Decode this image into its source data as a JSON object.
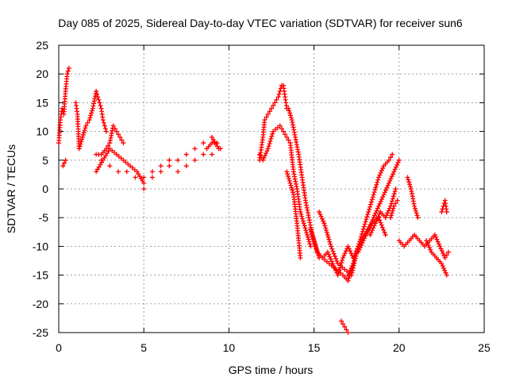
{
  "chart_data": {
    "type": "scatter",
    "title": "Day 085 of 2025, Sidereal Day-to-day VTEC variation (SDTVAR) for receiver sun6",
    "xlabel": "GPS time / hours",
    "ylabel": "SDTVAR / TECUs",
    "xlim": [
      0,
      25
    ],
    "ylim": [
      -25,
      25
    ],
    "xticks": [
      0,
      5,
      10,
      15,
      20,
      25
    ],
    "yticks": [
      25,
      20,
      15,
      10,
      5,
      0,
      -5,
      -10,
      -15,
      -20,
      -25
    ],
    "grid": true,
    "marker": "+",
    "series": [
      {
        "name": "SDTVAR",
        "color": "#ff0000",
        "x": [
          0.0,
          0.1,
          0.2,
          0.3,
          0.4,
          0.5,
          0.6,
          0.25,
          0.4,
          1.0,
          1.1,
          1.2,
          1.4,
          1.6,
          1.8,
          2.0,
          2.2,
          2.3,
          2.4,
          2.5,
          2.6,
          2.7,
          2.8,
          2.2,
          2.5,
          2.8,
          3.0,
          3.2,
          3.4,
          3.6,
          3.8,
          2.5,
          3.0,
          3.5,
          4.0,
          4.5,
          5.0,
          5.5,
          6.0,
          6.5,
          7.0,
          7.5,
          8.0,
          8.5,
          9.0,
          9.4,
          2.2,
          2.6,
          3.0,
          3.4,
          3.8,
          4.2,
          4.6,
          5.0,
          5.0,
          5.5,
          6.0,
          6.5,
          7.0,
          7.5,
          8.0,
          8.5,
          9.0,
          9.5,
          8.7,
          9.0,
          9.3,
          11.8,
          12.0,
          12.1,
          12.3,
          12.5,
          12.7,
          12.9,
          13.0,
          13.1,
          13.2,
          13.3,
          13.4,
          11.8,
          12.0,
          12.3,
          12.6,
          13.0,
          13.2,
          13.4,
          13.6,
          13.8,
          14.0,
          14.2,
          14.4,
          14.6,
          14.8,
          13.5,
          13.7,
          13.9,
          14.1,
          14.3,
          14.5,
          14.7,
          14.9,
          15.1,
          15.3,
          13.4,
          13.6,
          13.8,
          14.0,
          14.2,
          14.8,
          15.0,
          15.2,
          15.5,
          15.8,
          16.1,
          16.4,
          16.7,
          17.0,
          17.3,
          17.6,
          15.3,
          15.6,
          16.0,
          16.4,
          16.8,
          17.2,
          17.6,
          18.0,
          18.4,
          18.8,
          19.2,
          15.5,
          15.9,
          16.3,
          16.7,
          17.0,
          17.3,
          16.6,
          16.8,
          17.0,
          17.0,
          17.3,
          17.6,
          17.9,
          18.2,
          18.5,
          18.8,
          19.1,
          19.4,
          19.6,
          17.6,
          17.9,
          18.2,
          18.5,
          18.8,
          19.1,
          19.4,
          19.7,
          20.0,
          18.3,
          18.6,
          18.9,
          19.2,
          19.5,
          19.8,
          19.5,
          19.7,
          19.9,
          20.0,
          20.3,
          20.6,
          20.9,
          21.2,
          21.5,
          21.8,
          22.1,
          22.4,
          22.7,
          22.9,
          20.5,
          20.7,
          20.9,
          21.1,
          21.6,
          21.9,
          22.2,
          22.5,
          22.8,
          22.5,
          22.6,
          22.7,
          22.8
        ],
        "y": [
          8,
          12,
          14,
          13,
          17,
          20,
          21,
          4,
          5,
          15,
          13,
          7,
          9,
          11,
          12,
          14,
          17,
          16,
          15,
          14,
          12,
          11,
          10,
          6,
          6,
          7,
          8,
          11,
          10,
          9,
          8,
          5,
          4,
          3,
          3,
          2,
          2,
          3,
          4,
          5,
          5,
          6,
          7,
          8,
          9,
          7,
          3,
          5,
          7,
          6,
          5,
          4,
          3,
          1,
          0,
          2,
          3,
          4,
          3,
          4,
          5,
          6,
          6,
          7,
          7,
          8,
          8,
          5,
          9,
          12,
          13,
          14,
          15,
          16,
          17,
          18,
          18,
          16,
          14,
          6,
          5,
          7,
          10,
          11,
          10,
          9,
          8,
          3,
          0,
          -4,
          -6,
          -8,
          -10,
          14,
          12,
          9,
          6,
          2,
          -2,
          -5,
          -8,
          -10,
          -12,
          3,
          1,
          -1,
          -6,
          -12,
          -7,
          -9,
          -11,
          -12,
          -11,
          -13,
          -15,
          -12,
          -10,
          -12,
          -10,
          -4,
          -6,
          -10,
          -13,
          -14,
          -15,
          -10,
          -8,
          -6,
          -5,
          -8,
          -12,
          -13,
          -14,
          -15,
          -16,
          -13,
          -23,
          -24,
          -25,
          -15,
          -13,
          -10,
          -7,
          -4,
          -1,
          2,
          4,
          5,
          6,
          -11,
          -9,
          -7,
          -5,
          -3,
          -1,
          1,
          3,
          5,
          -8,
          -6,
          -4,
          -5,
          -3,
          0,
          -5,
          -3,
          -2,
          -9,
          -10,
          -9,
          -8,
          -9,
          -10,
          -9,
          -8,
          -10,
          -12,
          -11,
          2,
          0,
          -3,
          -5,
          -9,
          -11,
          -12,
          -13,
          -15,
          -4,
          -3,
          -2,
          -4
        ]
      }
    ]
  }
}
